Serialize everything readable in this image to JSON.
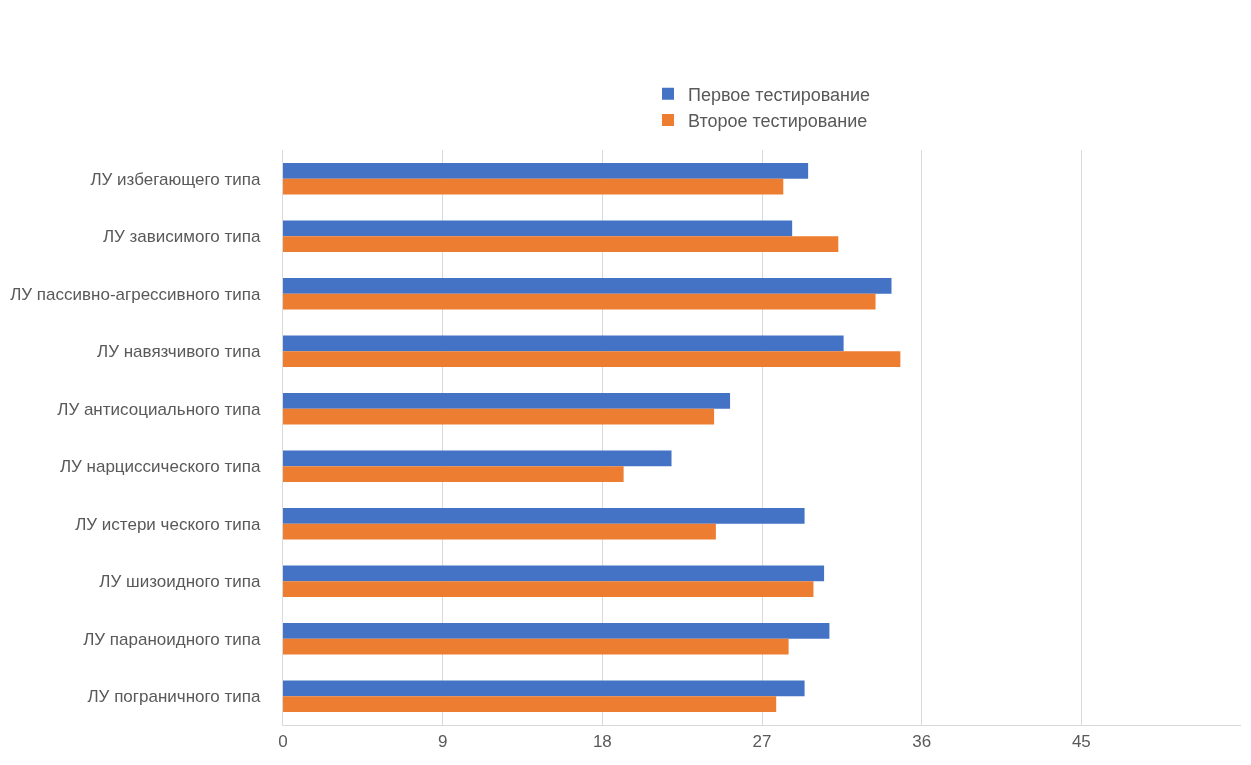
{
  "chart_data": {
    "type": "bar",
    "orientation": "horizontal",
    "categories": [
      "ЛУ избегающего типа",
      "ЛУ зависимого типа",
      "ЛУ пассивно-агрессивного типа",
      "ЛУ навязчивого типа",
      "ЛУ антисоциального типа",
      "ЛУ нарциссического типа",
      "ЛУ истери ческого типа",
      "ЛУ шизоидного типа",
      "ЛУ параноидного типа",
      "ЛУ пограничного типа"
    ],
    "series": [
      {
        "name": "Первое тестирование",
        "color": "#4472c4",
        "values": [
          29.6,
          28.7,
          34.3,
          31.6,
          25.2,
          21.9,
          29.4,
          30.5,
          30.8,
          29.4
        ]
      },
      {
        "name": "Второе тестирование",
        "color": "#ed7d31",
        "values": [
          28.2,
          31.3,
          33.4,
          34.8,
          24.3,
          19.2,
          24.4,
          29.9,
          28.5,
          27.8
        ]
      }
    ],
    "xlim": [
      0,
      54
    ],
    "xticks": [
      0,
      9,
      18,
      27,
      36,
      45
    ],
    "grid": "x",
    "legend": "top"
  }
}
